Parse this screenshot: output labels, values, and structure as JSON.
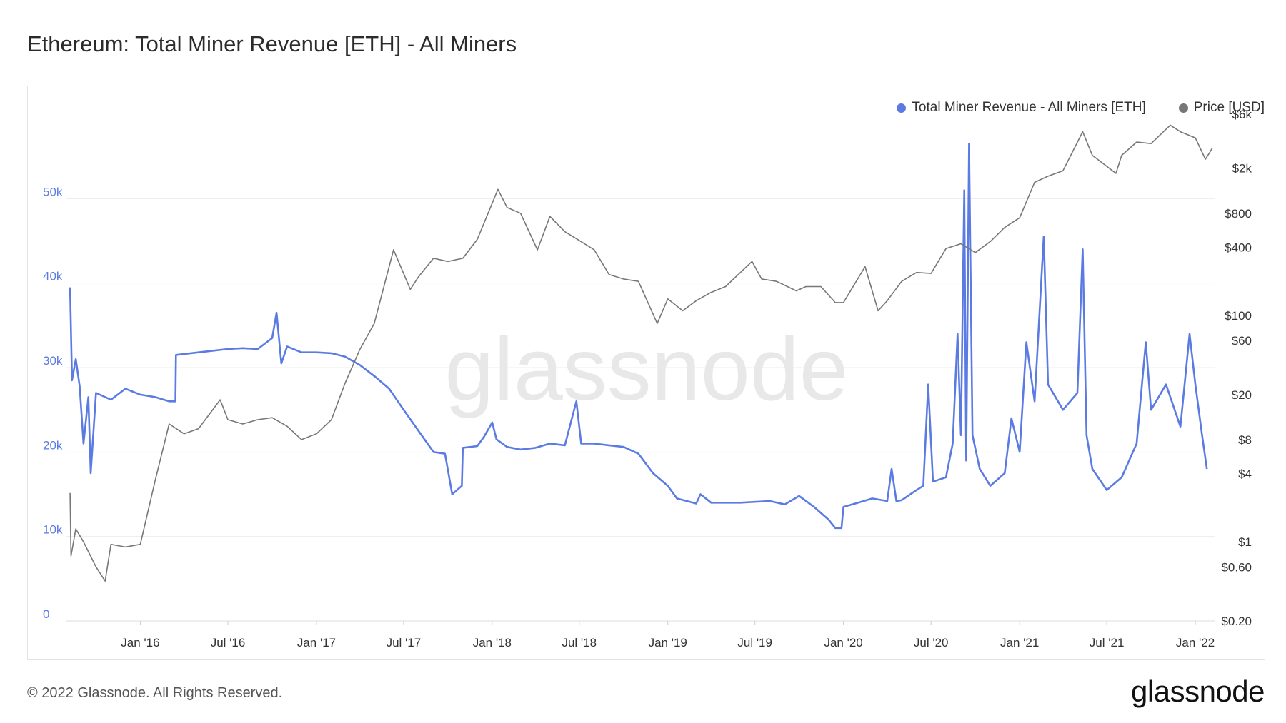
{
  "title": "Ethereum: Total Miner Revenue [ETH] - All Miners",
  "footer": {
    "copyright": "© 2022 Glassnode. All Rights Reserved.",
    "logo": "glassnode"
  },
  "watermark": "glassnode",
  "colors": {
    "revenue": "#5b7be3",
    "price": "#777777"
  },
  "chart_data": {
    "type": "line",
    "title": "Ethereum: Total Miner Revenue [ETH] - All Miners",
    "x_ticks": [
      "Jan '16",
      "Jul '16",
      "Jan '17",
      "Jul '17",
      "Jan '18",
      "Jul '18",
      "Jan '19",
      "Jul '19",
      "Jan '20",
      "Jul '20",
      "Jan '21",
      "Jul '21",
      "Jan '22"
    ],
    "y_left": {
      "ticks": [
        "0",
        "10k",
        "20k",
        "30k",
        "40k",
        "50k"
      ],
      "range": [
        0,
        60000
      ]
    },
    "y_right": {
      "scale": "log",
      "ticks": [
        "$0.20",
        "$0.60",
        "$1",
        "$4",
        "$8",
        "$20",
        "$60",
        "$100",
        "$400",
        "$800",
        "$2k",
        "$6k"
      ],
      "range": [
        0.2,
        6000
      ]
    },
    "legend": {
      "placement": "top-right",
      "entries": [
        "Total Miner Revenue - All Miners [ETH]",
        "Price [USD]"
      ]
    },
    "series": [
      {
        "name": "Total Miner Revenue - All Miners [ETH]",
        "axis": "left",
        "points": [
          [
            "2015-08-08",
            39500
          ],
          [
            "2015-08-12",
            28500
          ],
          [
            "2015-08-20",
            31000
          ],
          [
            "2015-08-28",
            27800
          ],
          [
            "2015-09-05",
            21000
          ],
          [
            "2015-09-15",
            26500
          ],
          [
            "2015-09-20",
            17500
          ],
          [
            "2015-10-01",
            27000
          ],
          [
            "2015-11-01",
            26200
          ],
          [
            "2015-12-01",
            27500
          ],
          [
            "2016-01-01",
            26800
          ],
          [
            "2016-02-01",
            26500
          ],
          [
            "2016-03-01",
            26000
          ],
          [
            "2016-03-14",
            26000
          ],
          [
            "2016-03-15",
            31500
          ],
          [
            "2016-05-01",
            31800
          ],
          [
            "2016-06-01",
            32000
          ],
          [
            "2016-07-01",
            32200
          ],
          [
            "2016-08-01",
            32300
          ],
          [
            "2016-09-01",
            32200
          ],
          [
            "2016-10-01",
            33500
          ],
          [
            "2016-10-10",
            36500
          ],
          [
            "2016-10-20",
            30500
          ],
          [
            "2016-11-01",
            32500
          ],
          [
            "2016-12-01",
            31800
          ],
          [
            "2017-01-01",
            31800
          ],
          [
            "2017-02-01",
            31700
          ],
          [
            "2017-03-01",
            31300
          ],
          [
            "2017-04-01",
            30300
          ],
          [
            "2017-05-01",
            29000
          ],
          [
            "2017-06-01",
            27500
          ],
          [
            "2017-07-01",
            25000
          ],
          [
            "2017-08-01",
            22500
          ],
          [
            "2017-09-01",
            20000
          ],
          [
            "2017-09-25",
            19800
          ],
          [
            "2017-10-10",
            15000
          ],
          [
            "2017-10-30",
            16000
          ],
          [
            "2017-11-01",
            20500
          ],
          [
            "2017-12-01",
            20700
          ],
          [
            "2017-12-15",
            21800
          ],
          [
            "2018-01-01",
            23500
          ],
          [
            "2018-01-10",
            21500
          ],
          [
            "2018-02-01",
            20600
          ],
          [
            "2018-03-01",
            20300
          ],
          [
            "2018-04-01",
            20500
          ],
          [
            "2018-05-01",
            21000
          ],
          [
            "2018-06-01",
            20800
          ],
          [
            "2018-06-25",
            26000
          ],
          [
            "2018-07-05",
            21000
          ],
          [
            "2018-08-01",
            21000
          ],
          [
            "2018-09-01",
            20800
          ],
          [
            "2018-10-01",
            20600
          ],
          [
            "2018-11-01",
            19800
          ],
          [
            "2018-12-01",
            17500
          ],
          [
            "2019-01-01",
            16000
          ],
          [
            "2019-01-20",
            14500
          ],
          [
            "2019-03-01",
            13900
          ],
          [
            "2019-03-10",
            15000
          ],
          [
            "2019-04-01",
            14000
          ],
          [
            "2019-06-01",
            14000
          ],
          [
            "2019-08-01",
            14200
          ],
          [
            "2019-09-01",
            13800
          ],
          [
            "2019-10-01",
            14800
          ],
          [
            "2019-11-01",
            13500
          ],
          [
            "2019-12-01",
            12000
          ],
          [
            "2019-12-15",
            11000
          ],
          [
            "2019-12-28",
            11000
          ],
          [
            "2020-01-01",
            13500
          ],
          [
            "2020-02-01",
            14000
          ],
          [
            "2020-03-01",
            14500
          ],
          [
            "2020-04-01",
            14200
          ],
          [
            "2020-04-10",
            18000
          ],
          [
            "2020-04-20",
            14200
          ],
          [
            "2020-05-01",
            14300
          ],
          [
            "2020-06-01",
            15500
          ],
          [
            "2020-06-15",
            16000
          ],
          [
            "2020-06-25",
            28000
          ],
          [
            "2020-07-05",
            16500
          ],
          [
            "2020-08-01",
            17000
          ],
          [
            "2020-08-15",
            21000
          ],
          [
            "2020-08-25",
            34000
          ],
          [
            "2020-09-01",
            22000
          ],
          [
            "2020-09-08",
            51000
          ],
          [
            "2020-09-12",
            19000
          ],
          [
            "2020-09-18",
            56500
          ],
          [
            "2020-09-25",
            22000
          ],
          [
            "2020-10-10",
            18000
          ],
          [
            "2020-11-01",
            16000
          ],
          [
            "2020-12-01",
            17500
          ],
          [
            "2020-12-15",
            24000
          ],
          [
            "2021-01-01",
            20000
          ],
          [
            "2021-01-15",
            33000
          ],
          [
            "2021-02-01",
            26000
          ],
          [
            "2021-02-20",
            45500
          ],
          [
            "2021-03-01",
            28000
          ],
          [
            "2021-04-01",
            25000
          ],
          [
            "2021-05-01",
            27000
          ],
          [
            "2021-05-12",
            44000
          ],
          [
            "2021-05-20",
            22000
          ],
          [
            "2021-06-01",
            18000
          ],
          [
            "2021-07-01",
            15500
          ],
          [
            "2021-08-01",
            17000
          ],
          [
            "2021-09-01",
            21000
          ],
          [
            "2021-09-20",
            33000
          ],
          [
            "2021-10-01",
            25000
          ],
          [
            "2021-11-01",
            28000
          ],
          [
            "2021-12-01",
            23000
          ],
          [
            "2021-12-20",
            34000
          ],
          [
            "2022-01-01",
            28000
          ],
          [
            "2022-01-15",
            22000
          ],
          [
            "2022-01-25",
            18000
          ]
        ]
      },
      {
        "name": "Price [USD]",
        "axis": "right",
        "points": [
          [
            "2015-08-08",
            2.7
          ],
          [
            "2015-08-10",
            0.75
          ],
          [
            "2015-08-20",
            1.3
          ],
          [
            "2015-09-05",
            1.0
          ],
          [
            "2015-10-01",
            0.6
          ],
          [
            "2015-10-20",
            0.45
          ],
          [
            "2015-11-01",
            0.95
          ],
          [
            "2015-12-01",
            0.9
          ],
          [
            "2016-01-01",
            0.95
          ],
          [
            "2016-02-01",
            3.5
          ],
          [
            "2016-03-01",
            11
          ],
          [
            "2016-04-01",
            9
          ],
          [
            "2016-05-01",
            10
          ],
          [
            "2016-06-15",
            18
          ],
          [
            "2016-07-01",
            12
          ],
          [
            "2016-08-01",
            11
          ],
          [
            "2016-09-01",
            12
          ],
          [
            "2016-10-01",
            12.5
          ],
          [
            "2016-11-01",
            10.5
          ],
          [
            "2016-12-01",
            8
          ],
          [
            "2017-01-01",
            9
          ],
          [
            "2017-02-01",
            12
          ],
          [
            "2017-03-01",
            25
          ],
          [
            "2017-04-01",
            50
          ],
          [
            "2017-05-01",
            85
          ],
          [
            "2017-06-10",
            380
          ],
          [
            "2017-07-15",
            170
          ],
          [
            "2017-08-01",
            220
          ],
          [
            "2017-09-01",
            320
          ],
          [
            "2017-10-01",
            300
          ],
          [
            "2017-11-01",
            320
          ],
          [
            "2017-12-01",
            470
          ],
          [
            "2018-01-13",
            1300
          ],
          [
            "2018-02-01",
            900
          ],
          [
            "2018-03-01",
            800
          ],
          [
            "2018-04-05",
            380
          ],
          [
            "2018-05-01",
            750
          ],
          [
            "2018-06-01",
            550
          ],
          [
            "2018-07-01",
            460
          ],
          [
            "2018-08-01",
            380
          ],
          [
            "2018-09-01",
            230
          ],
          [
            "2018-10-01",
            210
          ],
          [
            "2018-11-01",
            200
          ],
          [
            "2018-12-10",
            85
          ],
          [
            "2019-01-01",
            140
          ],
          [
            "2019-02-01",
            110
          ],
          [
            "2019-03-01",
            135
          ],
          [
            "2019-04-01",
            160
          ],
          [
            "2019-05-01",
            180
          ],
          [
            "2019-06-25",
            300
          ],
          [
            "2019-07-15",
            210
          ],
          [
            "2019-08-15",
            200
          ],
          [
            "2019-09-25",
            165
          ],
          [
            "2019-10-15",
            180
          ],
          [
            "2019-11-15",
            180
          ],
          [
            "2019-12-15",
            130
          ],
          [
            "2020-01-01",
            130
          ],
          [
            "2020-02-15",
            270
          ],
          [
            "2020-03-13",
            110
          ],
          [
            "2020-04-01",
            135
          ],
          [
            "2020-05-01",
            200
          ],
          [
            "2020-06-01",
            240
          ],
          [
            "2020-07-01",
            235
          ],
          [
            "2020-08-01",
            390
          ],
          [
            "2020-09-01",
            430
          ],
          [
            "2020-10-01",
            360
          ],
          [
            "2020-11-01",
            450
          ],
          [
            "2020-12-01",
            600
          ],
          [
            "2021-01-01",
            730
          ],
          [
            "2021-02-01",
            1500
          ],
          [
            "2021-03-01",
            1700
          ],
          [
            "2021-04-01",
            1900
          ],
          [
            "2021-05-12",
            4200
          ],
          [
            "2021-06-01",
            2600
          ],
          [
            "2021-07-20",
            1800
          ],
          [
            "2021-08-01",
            2600
          ],
          [
            "2021-09-01",
            3400
          ],
          [
            "2021-10-01",
            3300
          ],
          [
            "2021-11-10",
            4800
          ],
          [
            "2021-12-01",
            4200
          ],
          [
            "2022-01-01",
            3700
          ],
          [
            "2022-01-22",
            2400
          ],
          [
            "2022-02-01",
            2800
          ],
          [
            "2022-02-05",
            3000
          ]
        ]
      }
    ]
  }
}
